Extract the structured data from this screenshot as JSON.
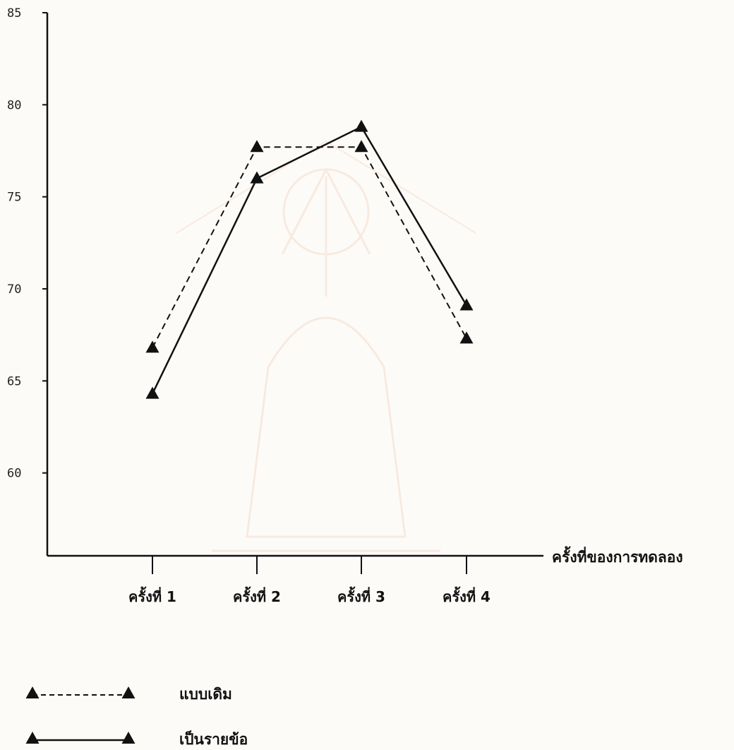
{
  "colors": {
    "ink": "#111111",
    "paper": "#fdfbf8",
    "watermark": "#e3a070"
  },
  "chart_data": {
    "type": "line",
    "categories": [
      "ครั้งที่ 1",
      "ครั้งที่ 2",
      "ครั้งที่ 3",
      "ครั้งที่ 4"
    ],
    "x": [
      1,
      2,
      3,
      4
    ],
    "series": [
      {
        "name": "แบบเดิม",
        "values": [
          66.8,
          77.7,
          77.7,
          67.3
        ],
        "line_style": "dashed",
        "marker": "triangle"
      },
      {
        "name": "เป็นรายข้อ",
        "values": [
          64.3,
          76.0,
          78.8,
          69.1
        ],
        "line_style": "solid",
        "marker": "triangle"
      }
    ],
    "title": "",
    "xlabel": "ครั้งที่ของการทดลอง",
    "ylabel": "",
    "yticks": [
      60,
      65,
      70,
      75,
      80,
      85
    ],
    "ylim": [
      55.5,
      85
    ],
    "grid": false,
    "legend": "bottom-left"
  }
}
